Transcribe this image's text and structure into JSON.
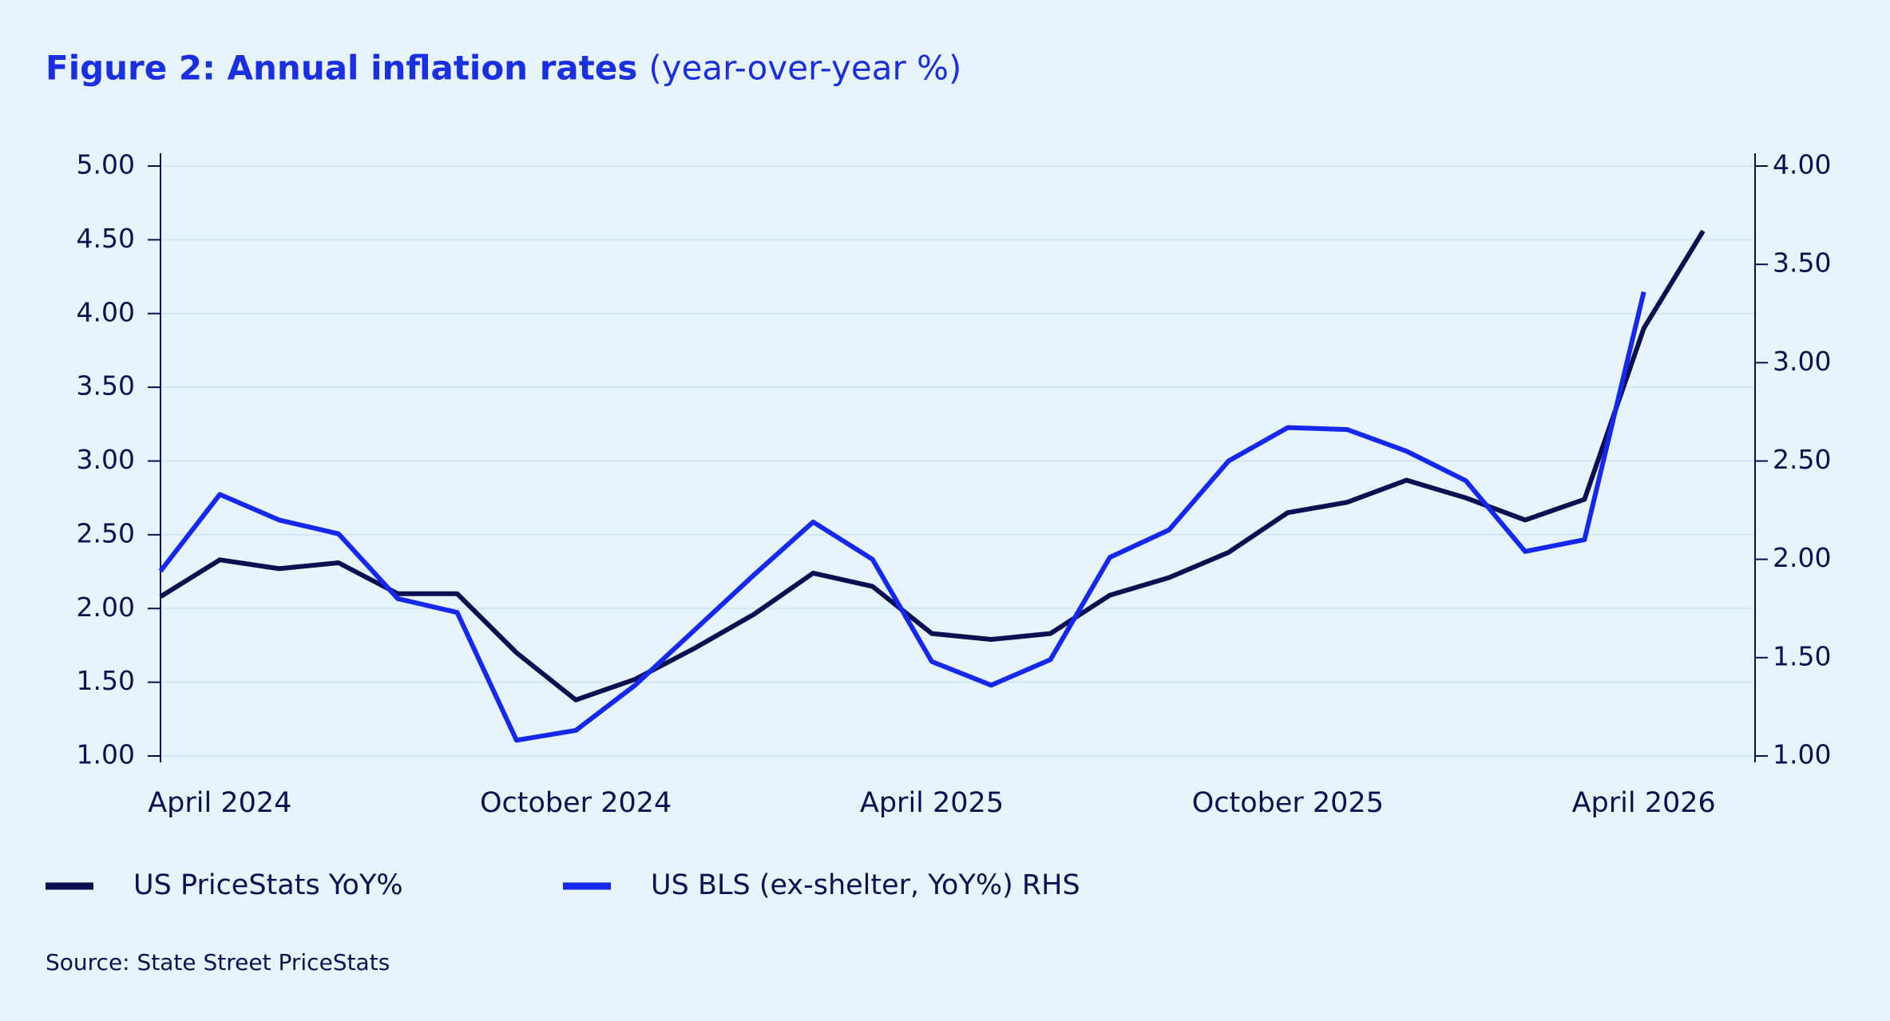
{
  "chart_data": {
    "type": "line",
    "title": "Figure 2: Annual inflation rates",
    "subtitle": "(year-over-year %)",
    "source": "Source: State Street PriceStats",
    "categories": [
      null,
      "April 2024",
      null,
      null,
      null,
      null,
      null,
      "October 2024",
      null,
      null,
      null,
      null,
      null,
      "April 2025",
      null,
      null,
      null,
      null,
      null,
      "October 2025",
      null,
      null,
      null,
      null,
      null,
      "April 2026",
      null
    ],
    "series": [
      {
        "name": "US PriceStats YoY%",
        "color": "#0b1150",
        "axis": "y",
        "values": [
          2.08,
          2.33,
          2.27,
          2.31,
          2.1,
          2.1,
          1.7,
          1.38,
          1.52,
          1.73,
          1.96,
          2.24,
          2.15,
          1.83,
          1.79,
          1.83,
          2.09,
          2.21,
          2.38,
          2.65,
          2.72,
          2.87,
          2.75,
          2.6,
          2.74,
          3.9,
          4.56
        ]
      },
      {
        "name": "US BLS (ex-shelter, YoY%) RHS",
        "color": "#1428f0",
        "axis": "y2",
        "values": [
          1.94,
          2.33,
          2.2,
          2.13,
          1.8,
          1.73,
          1.08,
          1.13,
          1.36,
          1.64,
          1.92,
          2.19,
          2.0,
          1.48,
          1.36,
          1.49,
          2.01,
          2.15,
          2.5,
          2.67,
          2.66,
          2.55,
          2.4,
          2.04,
          2.1,
          3.36,
          null
        ]
      }
    ],
    "ylim": [
      1,
      5
    ],
    "yticks": [
      {
        "value": 1,
        "label": "1.00"
      },
      {
        "value": 1.5,
        "label": "1.50"
      },
      {
        "value": 2,
        "label": "2.00"
      },
      {
        "value": 2.5,
        "label": "2.50"
      },
      {
        "value": 3,
        "label": "3.00"
      },
      {
        "value": 3.5,
        "label": "3.50"
      },
      {
        "value": 4,
        "label": "4.00"
      },
      {
        "value": 4.5,
        "label": "4.50"
      },
      {
        "value": 5,
        "label": "5.00"
      }
    ],
    "y2lim": [
      1,
      4
    ],
    "y2ticks": [
      {
        "value": 1,
        "label": "1.00"
      },
      {
        "value": 1.5,
        "label": "1.50"
      },
      {
        "value": 2,
        "label": "2.00"
      },
      {
        "value": 2.5,
        "label": "2.50"
      },
      {
        "value": 3,
        "label": "3.00"
      },
      {
        "value": 3.5,
        "label": "3.50"
      },
      {
        "value": 4,
        "label": "4.00"
      }
    ],
    "grid": true
  }
}
